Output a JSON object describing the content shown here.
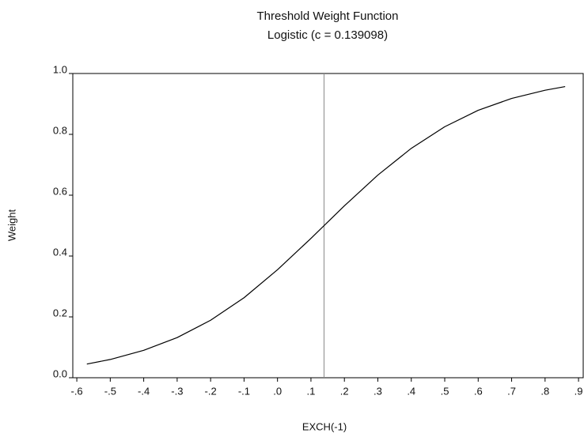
{
  "chart_data": {
    "type": "line",
    "title": "Threshold Weight Function",
    "subtitle": "Logistic (c = 0.139098)",
    "x_label": "EXCH(-1)",
    "y_label": "Weight",
    "threshold": 0.139098,
    "x": [
      -0.57,
      -0.5,
      -0.4,
      -0.3,
      -0.2,
      -0.1,
      0.0,
      0.1,
      0.2,
      0.3,
      0.4,
      0.5,
      0.6,
      0.7,
      0.8,
      0.86
    ],
    "series": [
      {
        "name": "Weight",
        "color": "#000000",
        "values": [
          0.045,
          0.06,
          0.09,
          0.132,
          0.189,
          0.263,
          0.355,
          0.458,
          0.565,
          0.666,
          0.754,
          0.825,
          0.879,
          0.918,
          0.945,
          0.957
        ]
      }
    ],
    "xlim": [
      -0.612,
      0.914
    ],
    "xticks": [
      {
        "value": -0.6,
        "label": "-.6"
      },
      {
        "value": -0.5,
        "label": "-.5"
      },
      {
        "value": -0.4,
        "label": "-.4"
      },
      {
        "value": -0.3,
        "label": "-.3"
      },
      {
        "value": -0.2,
        "label": "-.2"
      },
      {
        "value": -0.1,
        "label": "-.1"
      },
      {
        "value": 0,
        "label": ".0"
      },
      {
        "value": 0.1,
        "label": ".1"
      },
      {
        "value": 0.2,
        "label": ".2"
      },
      {
        "value": 0.3,
        "label": ".3"
      },
      {
        "value": 0.4,
        "label": ".4"
      },
      {
        "value": 0.5,
        "label": ".5"
      },
      {
        "value": 0.6,
        "label": ".6"
      },
      {
        "value": 0.7,
        "label": ".7"
      },
      {
        "value": 0.8,
        "label": ".8"
      },
      {
        "value": 0.9,
        "label": ".9"
      }
    ],
    "ylim": [
      0,
      1
    ],
    "yticks": [
      {
        "value": 0,
        "label": "0.0"
      },
      0.2,
      0.4,
      0.6,
      0.8,
      {
        "value": 1,
        "label": "1.0"
      }
    ]
  }
}
